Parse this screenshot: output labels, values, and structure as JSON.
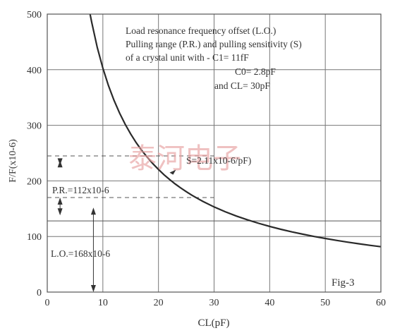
{
  "chart_data": {
    "type": "line",
    "xlabel": "CL(pF)",
    "ylabel": "F/F(x10-6)",
    "xlim": [
      0,
      60
    ],
    "ylim": [
      0,
      500
    ],
    "x_ticks": [
      "0",
      "10",
      "20",
      "30",
      "40",
      "50",
      "60"
    ],
    "y_ticks": [
      "0",
      "100",
      "200",
      "300",
      "400",
      "500"
    ],
    "grid": true,
    "series": [
      {
        "x": [
          7.7,
          8,
          9,
          10,
          11,
          12,
          13,
          14,
          15,
          16,
          17,
          18,
          19,
          20,
          21,
          22,
          23,
          24,
          25,
          26,
          27,
          28,
          30,
          32,
          34,
          36,
          38,
          40,
          42,
          44,
          46,
          48,
          50,
          52,
          54,
          56,
          58,
          60
        ],
        "y": [
          500,
          484.8,
          440.0,
          402.9,
          371.6,
          345.0,
          322.1,
          302.0,
          284.4,
          268.7,
          254.7,
          242.2,
          230.8,
          220.5,
          211.1,
          202.5,
          194.6,
          187.3,
          180.6,
          174.3,
          168.5,
          163.1,
          153.2,
          144.5,
          136.8,
          129.9,
          123.7,
          118.1,
          113.0,
          108.3,
          104.0,
          100.0,
          96.4,
          93.0,
          89.8,
          86.9,
          84.1,
          81.6
        ]
      }
    ],
    "dashed_levels": [
      245,
      170
    ],
    "solid_levels": [
      128
    ],
    "sensitivity_point": {
      "x": 22,
      "y": 215
    },
    "annotations": {
      "description": [
        "Load resonance frequency offset (L.O.)",
        "Pulling range (P.R.) and pulling sensitivity (S)",
        "of a crystal unit with - C1= 11fF",
        "C0= 2.8pF",
        "and CL= 30pF"
      ],
      "sensitivity": "S=2.11x10-6/pF)",
      "pulling_range": "P.R.=112x10-6",
      "load_offset": "L.O.=168x10-6",
      "figure_label": "Fig-3"
    }
  },
  "watermark": "泰河电子"
}
